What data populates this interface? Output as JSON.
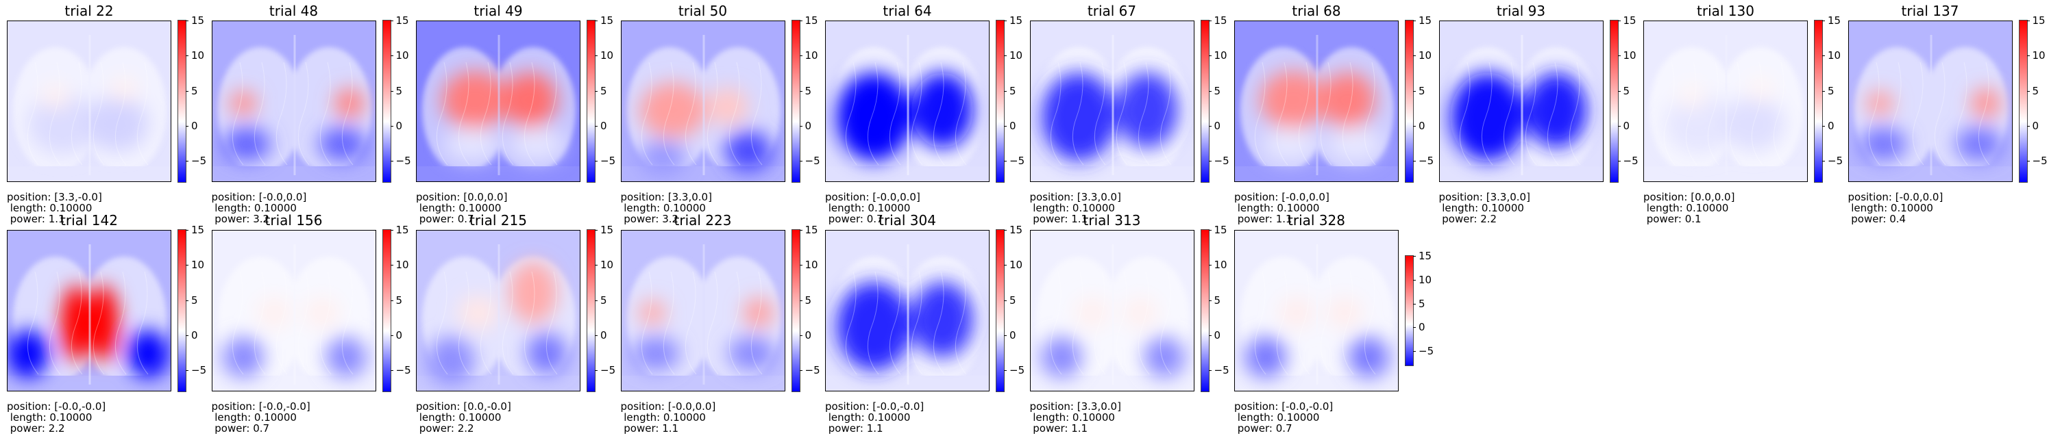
{
  "chart_data": {
    "type": "heatmap",
    "layout": {
      "rows": 2,
      "columns": 10
    },
    "colormap": "bwr",
    "colorbar_range": [
      -8,
      15
    ],
    "colorbar_ticks": [
      -5,
      0,
      5,
      10,
      15
    ],
    "caption_labels": {
      "position": "position: ",
      "length": " length: ",
      "power": " power: "
    },
    "panels": [
      {
        "title": "trial 22",
        "position": "[3.3,-0.0]",
        "length": "0.10000",
        "power": "1.1",
        "pattern": "weak-mixed",
        "intensity": 0.55
      },
      {
        "title": "trial 48",
        "position": "[-0.0,0.0]",
        "length": "0.10000",
        "power": "3.2",
        "pattern": "lateral-red",
        "intensity": 0.8
      },
      {
        "title": "trial 49",
        "position": "[0.0,0.0]",
        "length": "0.10000",
        "power": "0.7",
        "pattern": "central-red",
        "intensity": 0.85
      },
      {
        "title": "trial 50",
        "position": "[3.3,0.0]",
        "length": "0.10000",
        "power": "3.2",
        "pattern": "left-red",
        "intensity": 0.8
      },
      {
        "title": "trial 64",
        "position": "[-0.0,0.0]",
        "length": "0.10000",
        "power": "0.7",
        "pattern": "strong-blue",
        "intensity": 1.0
      },
      {
        "title": "trial 67",
        "position": "[3.3,0.0]",
        "length": "0.10000",
        "power": "1.1",
        "pattern": "strong-blue",
        "intensity": 0.8
      },
      {
        "title": "trial 68",
        "position": "[-0.0,0.0]",
        "length": "0.10000",
        "power": "1.1",
        "pattern": "central-red",
        "intensity": 0.75
      },
      {
        "title": "trial 93",
        "position": "[3.3,0.0]",
        "length": "0.10000",
        "power": "2.2",
        "pattern": "strong-blue",
        "intensity": 0.95
      },
      {
        "title": "trial 130",
        "position": "[0.0,0.0]",
        "length": "0.10000",
        "power": "0.1",
        "pattern": "weak-mixed",
        "intensity": 0.4
      },
      {
        "title": "trial 137",
        "position": "[-0.0,0.0]",
        "length": "0.10000",
        "power": "0.4",
        "pattern": "lateral-red",
        "intensity": 0.7
      },
      {
        "title": "trial 142",
        "position": "[-0.0,-0.0]",
        "length": "0.10000",
        "power": "2.2",
        "pattern": "midline-red",
        "intensity": 1.0
      },
      {
        "title": "trial 156",
        "position": "[-0.0,-0.0]",
        "length": "0.10000",
        "power": "0.7",
        "pattern": "weak-blue",
        "intensity": 0.6
      },
      {
        "title": "trial 215",
        "position": "[0.0,-0.0]",
        "length": "0.10000",
        "power": "2.2",
        "pattern": "right-red",
        "intensity": 0.7
      },
      {
        "title": "trial 223",
        "position": "[-0.0,0.0]",
        "length": "0.10000",
        "power": "1.1",
        "pattern": "lateral-red",
        "intensity": 0.6
      },
      {
        "title": "trial 304",
        "position": "[-0.0,-0.0]",
        "length": "0.10000",
        "power": "1.1",
        "pattern": "strong-blue",
        "intensity": 0.85
      },
      {
        "title": "trial 313",
        "position": "[3.3,0.0]",
        "length": "0.10000",
        "power": "1.1",
        "pattern": "weak-blue",
        "intensity": 0.6
      },
      {
        "title": "trial 328",
        "position": "[-0.0,-0.0]",
        "length": "0.10000",
        "power": "0.7",
        "pattern": "weak-blue",
        "intensity": 0.7
      }
    ]
  }
}
